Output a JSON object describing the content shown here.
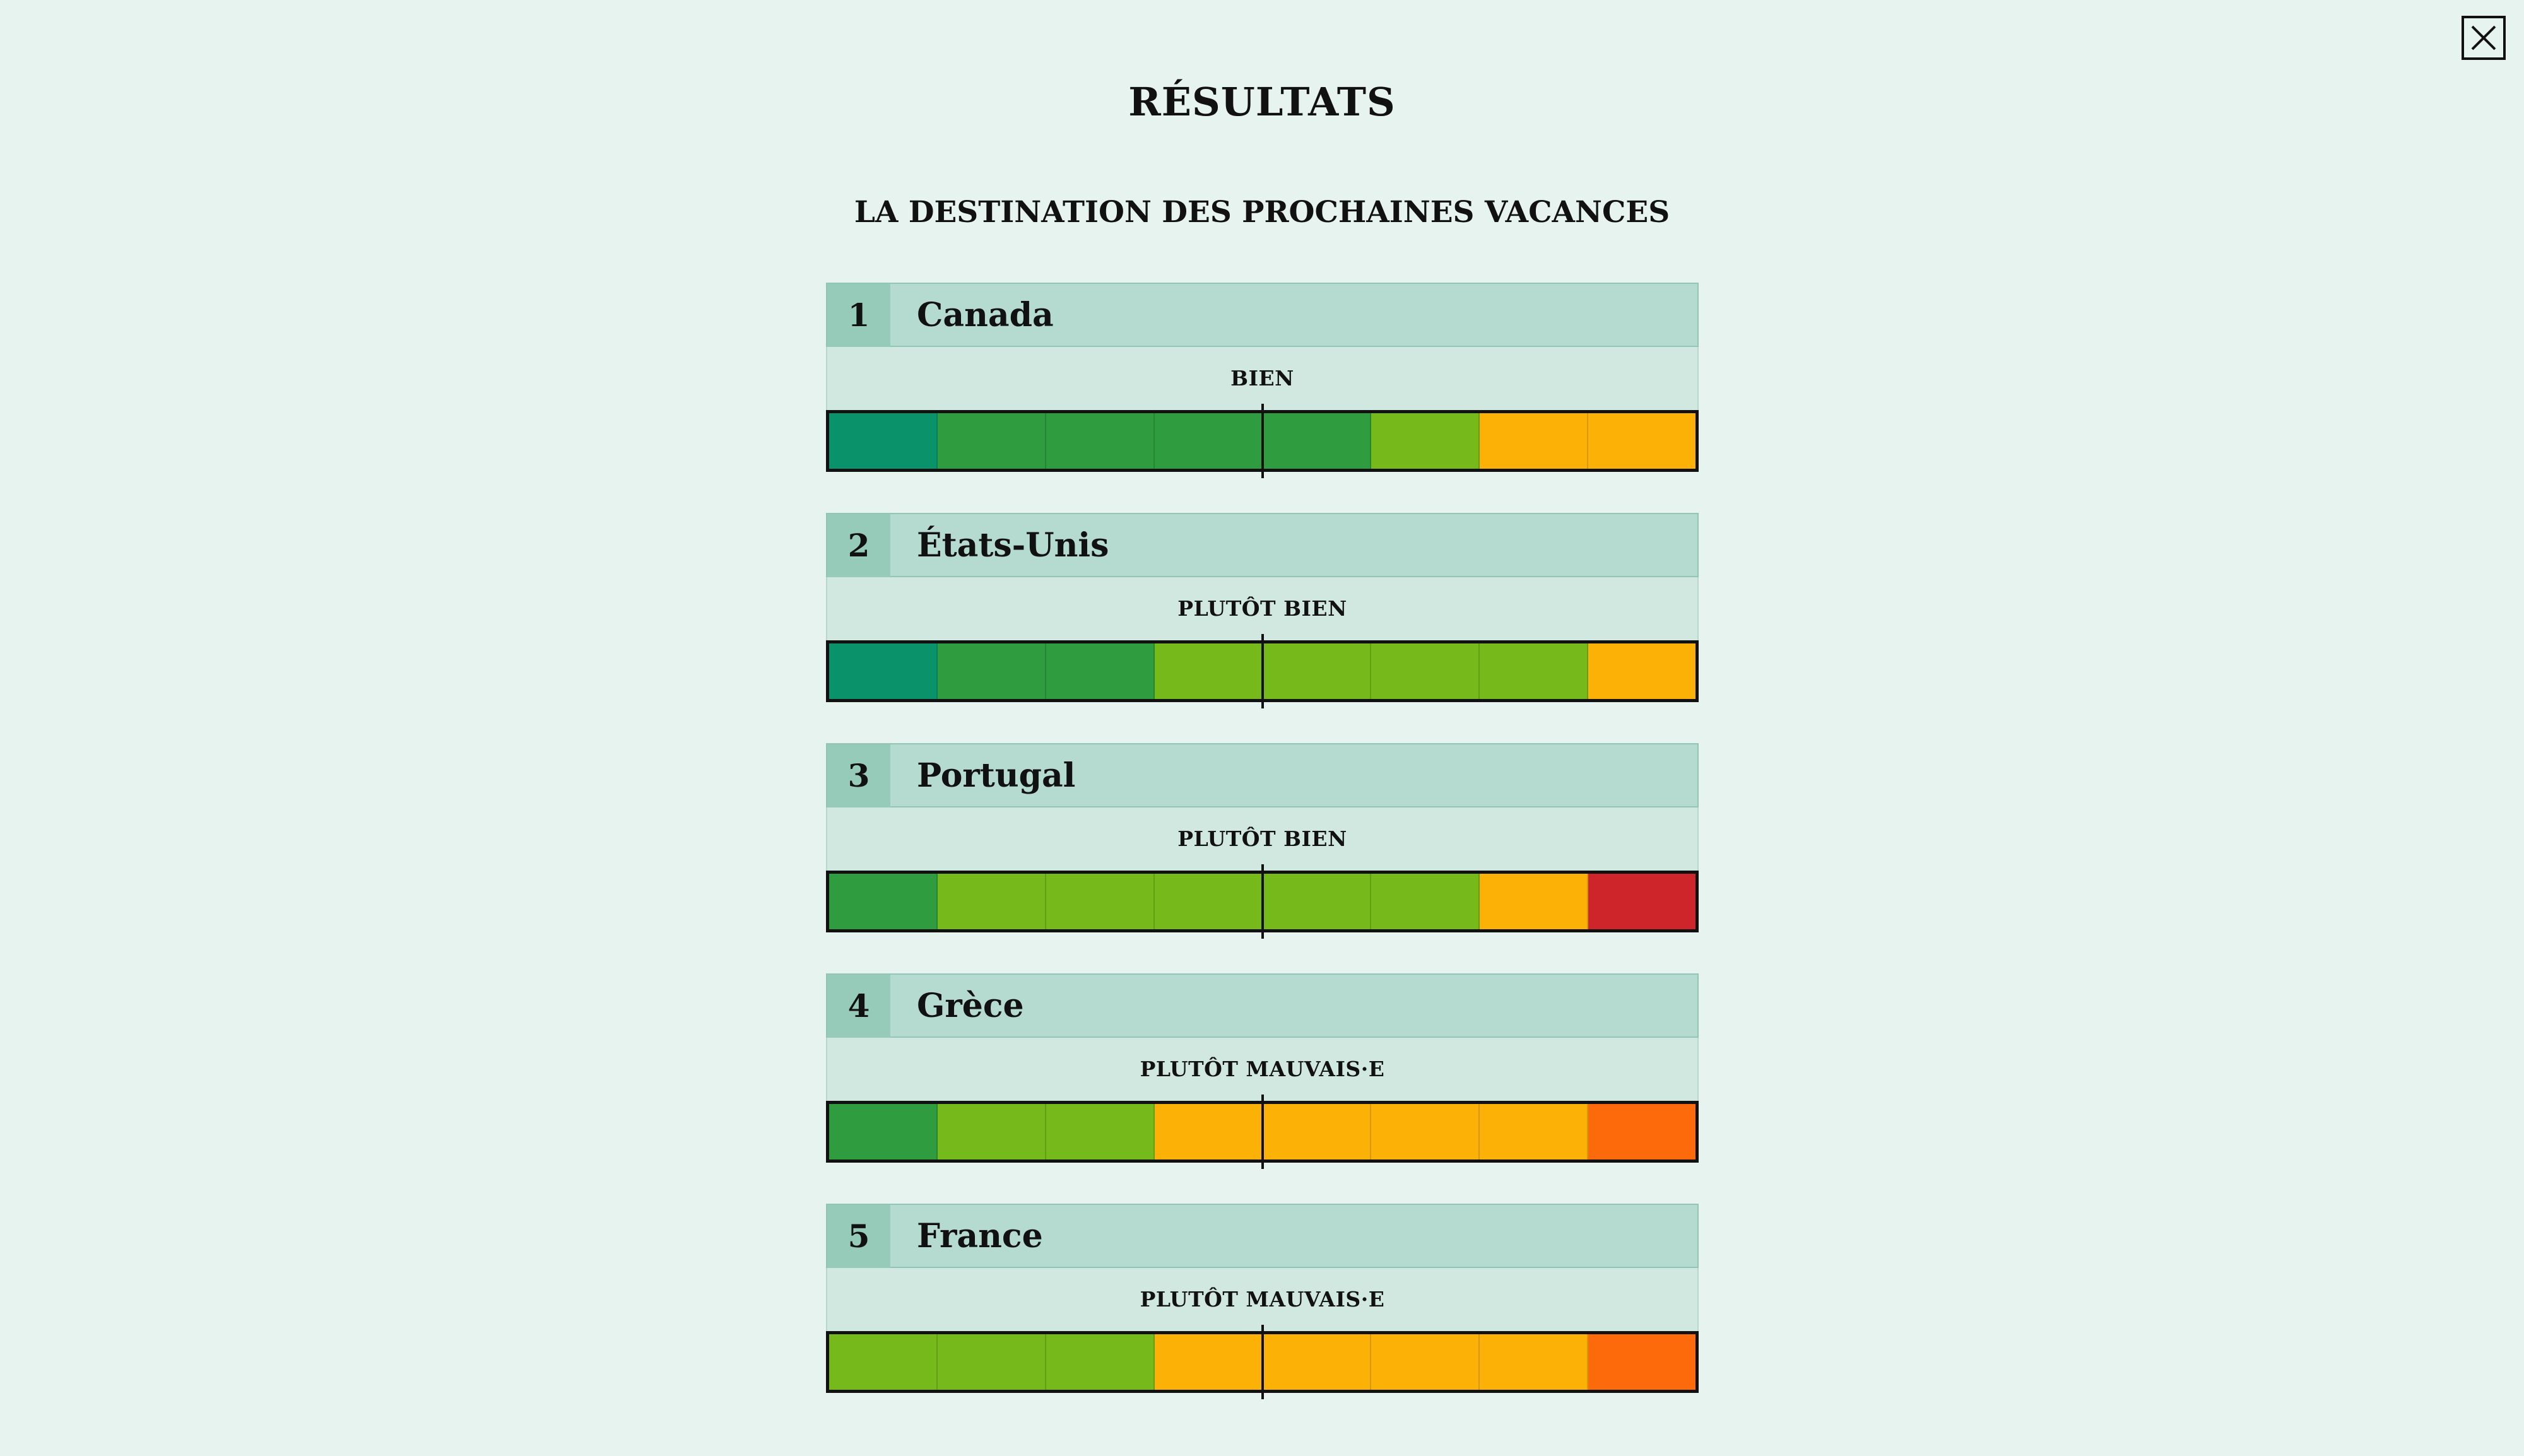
{
  "close_icon": "close-icon",
  "title": "RÉSULTATS",
  "subtitle": "LA DESTINATION DES PROCHAINES VACANCES",
  "grade_colors": {
    "excellent": "#0a936b",
    "tres_bien": "#2e9c3f",
    "bien": "#75b91b",
    "assez_bien": "#fbb106",
    "passable": "#fc6a0c",
    "insuffisant": "#cd2529"
  },
  "results": [
    {
      "rank": "1",
      "name": "Canada",
      "verdict": "BIEN",
      "grades": [
        "excellent",
        "tres_bien",
        "tres_bien",
        "tres_bien",
        "tres_bien",
        "bien",
        "assez_bien",
        "assez_bien"
      ]
    },
    {
      "rank": "2",
      "name": "États-Unis",
      "verdict": "PLUTÔT BIEN",
      "grades": [
        "excellent",
        "tres_bien",
        "tres_bien",
        "bien",
        "bien",
        "bien",
        "bien",
        "assez_bien"
      ]
    },
    {
      "rank": "3",
      "name": "Portugal",
      "verdict": "PLUTÔT BIEN",
      "grades": [
        "tres_bien",
        "bien",
        "bien",
        "bien",
        "bien",
        "bien",
        "assez_bien",
        "insuffisant"
      ]
    },
    {
      "rank": "4",
      "name": "Grèce",
      "verdict": "PLUTÔT MAUVAIS·E",
      "grades": [
        "tres_bien",
        "bien",
        "bien",
        "assez_bien",
        "assez_bien",
        "assez_bien",
        "assez_bien",
        "passable"
      ]
    },
    {
      "rank": "5",
      "name": "France",
      "verdict": "PLUTÔT MAUVAIS·E",
      "grades": [
        "bien",
        "bien",
        "bien",
        "assez_bien",
        "assez_bien",
        "assez_bien",
        "assez_bien",
        "passable"
      ]
    }
  ]
}
